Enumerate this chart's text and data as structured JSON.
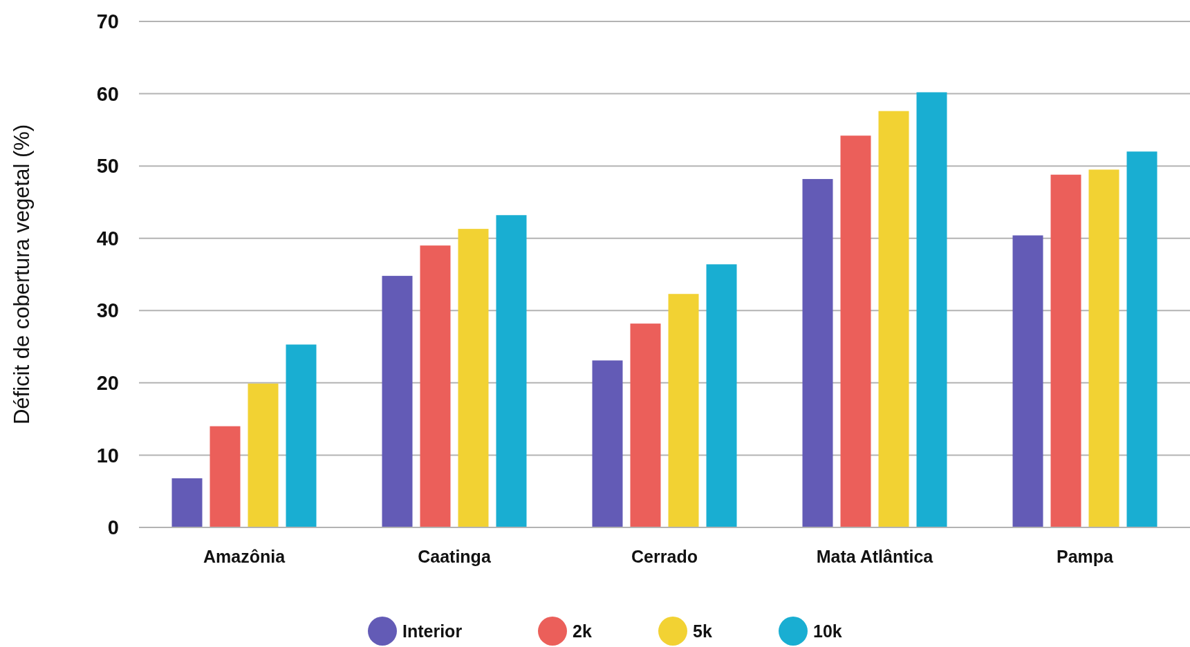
{
  "chart_data": {
    "type": "bar",
    "ylabel": "Déficit de cobertura vegetal (%)",
    "categories": [
      "Amazônia",
      "Caatinga",
      "Cerrado",
      "Mata Atlântica",
      "Pampa"
    ],
    "series": [
      {
        "name": "Interior",
        "color": "#635bb6",
        "values": [
          6.8,
          34.8,
          23.1,
          48.2,
          40.4
        ]
      },
      {
        "name": "2k",
        "color": "#eb5f5a",
        "values": [
          14.0,
          39.0,
          28.2,
          54.2,
          48.8
        ]
      },
      {
        "name": "5k",
        "color": "#f2d233",
        "values": [
          19.9,
          41.3,
          32.3,
          57.6,
          49.5
        ]
      },
      {
        "name": "10k",
        "color": "#19aed2",
        "values": [
          25.3,
          43.2,
          36.4,
          60.2,
          52.0
        ]
      }
    ],
    "ylim": [
      0,
      70
    ],
    "yticks": [
      0,
      10,
      20,
      30,
      40,
      50,
      60,
      70
    ],
    "grid": "y",
    "legend": "bottom"
  }
}
